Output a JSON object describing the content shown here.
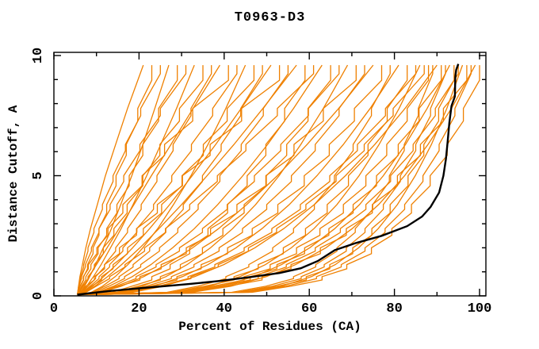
{
  "chart_data": {
    "type": "line",
    "title": "T0963-D3",
    "xlabel": "Percent of Residues (CA)",
    "ylabel": "Distance Cutoff, A",
    "xlim": [
      0,
      101.5
    ],
    "ylim": [
      0,
      10.15
    ],
    "x_major_ticks": [
      0,
      20,
      40,
      60,
      80,
      100
    ],
    "x_minor_ticks": [
      10,
      30,
      50,
      70,
      90
    ],
    "y_major_ticks": [
      0,
      5,
      10
    ],
    "y_minor_ticks": [
      1,
      2,
      3,
      4,
      6,
      7,
      8,
      9
    ],
    "grid": false,
    "legend": null,
    "colors": {
      "models": "#ef8000",
      "reference": "#000000",
      "axis": "#000000",
      "background": "#ffffff"
    },
    "origin_point": [
      5.5,
      0.05
    ],
    "cutoff_checkpoints": [
      0.15,
      0.4,
      0.8,
      1.3,
      2.0,
      2.8,
      3.8,
      5.0,
      6.3,
      7.8,
      9.6
    ],
    "model_curves_x": [
      [
        5.6,
        5.8,
        6.1,
        6.7,
        7.5,
        8.6,
        10.2,
        12.1,
        14.5,
        17.3,
        21
      ],
      [
        5.8,
        6.2,
        7.0,
        7.9,
        9.2,
        10.6,
        12.4,
        14.6,
        17.0,
        19.7,
        23
      ],
      [
        5.6,
        5.8,
        6.3,
        7.0,
        8.0,
        9.4,
        11.4,
        13.9,
        16.8,
        20.4,
        25
      ],
      [
        6.3,
        7.2,
        8.4,
        9.8,
        11.6,
        13.5,
        15.7,
        18.3,
        20.9,
        23.7,
        27
      ],
      [
        5.9,
        6.5,
        7.5,
        8.7,
        10.4,
        12.4,
        14.8,
        17.7,
        20.9,
        24.6,
        29
      ],
      [
        5.6,
        5.9,
        6.5,
        7.4,
        8.8,
        10.6,
        13.2,
        16.4,
        20.2,
        25.0,
        31
      ],
      [
        6.5,
        7.7,
        9.3,
        11.1,
        13.3,
        15.8,
        18.6,
        21.8,
        25.1,
        28.8,
        33
      ],
      [
        6.0,
        6.7,
        8.0,
        9.5,
        11.6,
        14.1,
        17.2,
        20.9,
        24.9,
        29.5,
        35
      ],
      [
        6.6,
        8.0,
        9.8,
        11.9,
        14.5,
        17.3,
        20.5,
        24.2,
        28.0,
        32.2,
        37
      ],
      [
        6.0,
        6.9,
        8.3,
        10.0,
        12.5,
        15.3,
        18.8,
        22.9,
        27.5,
        32.7,
        39
      ],
      [
        5.7,
        6.1,
        6.9,
        8.1,
        10.1,
        12.7,
        16.2,
        20.7,
        26.0,
        32.6,
        41
      ],
      [
        6.8,
        8.5,
        10.6,
        13.1,
        16.2,
        19.5,
        23.4,
        27.7,
        32.3,
        37.3,
        43
      ],
      [
        8.8,
        11.4,
        14.4,
        17.4,
        20.9,
        24.4,
        28.1,
        32.2,
        36.2,
        40.4,
        45
      ],
      [
        7.0,
        8.8,
        11.2,
        13.9,
        17.3,
        21.0,
        25.3,
        30.1,
        35.1,
        40.7,
        47
      ],
      [
        9.1,
        12.0,
        15.3,
        18.6,
        22.5,
        26.3,
        30.4,
        34.9,
        39.3,
        43.9,
        49
      ],
      [
        7.1,
        9.1,
        11.7,
        14.7,
        18.5,
        22.5,
        27.2,
        32.5,
        38.0,
        44.0,
        51
      ],
      [
        6.2,
        7.5,
        9.5,
        11.9,
        15.4,
        19.4,
        24.3,
        30.2,
        36.7,
        44.1,
        53
      ],
      [
        9.6,
        12.9,
        16.6,
        20.4,
        24.8,
        29.1,
        33.9,
        39.0,
        44.0,
        49.2,
        55
      ],
      [
        7.3,
        9.6,
        12.6,
        15.9,
        20.2,
        24.7,
        30.0,
        36.0,
        42.3,
        49.1,
        57
      ],
      [
        13.7,
        18.3,
        23.0,
        27.3,
        31.9,
        36.2,
        40.8,
        45.4,
        49.8,
        54.2,
        59
      ],
      [
        7.5,
        9.9,
        13.1,
        16.7,
        21.3,
        26.2,
        31.9,
        38.4,
        45.1,
        52.5,
        61
      ],
      [
        10.2,
        14.0,
        18.4,
        22.8,
        27.9,
        33.0,
        38.5,
        44.4,
        50.2,
        56.3,
        63
      ],
      [
        14.7,
        19.7,
        25.0,
        29.7,
        34.9,
        39.7,
        44.7,
        49.9,
        54.7,
        59.7,
        65
      ],
      [
        10.6,
        14.6,
        19.3,
        24.0,
        29.5,
        34.9,
        40.7,
        47.1,
        53.3,
        59.8,
        67
      ],
      [
        15.3,
        20.7,
        26.3,
        31.3,
        36.8,
        42.0,
        47.4,
        52.9,
        58.0,
        63.3,
        69
      ],
      [
        10.9,
        15.2,
        20.2,
        25.2,
        31.1,
        36.8,
        43.0,
        49.8,
        56.4,
        63.3,
        71
      ],
      [
        15.9,
        21.7,
        27.6,
        32.9,
        38.8,
        44.3,
        50.0,
        55.8,
        61.4,
        67.0,
        73
      ],
      [
        11.2,
        15.8,
        21.1,
        26.4,
        32.6,
        38.7,
        45.3,
        52.5,
        59.5,
        66.9,
        75
      ],
      [
        16.5,
        22.6,
        28.9,
        34.6,
        40.8,
        46.6,
        52.6,
        58.8,
        64.7,
        70.6,
        77
      ],
      [
        26.6,
        33.8,
        40.4,
        45.8,
        51.4,
        56.3,
        61.2,
        65.9,
        70.3,
        74.6,
        79
      ],
      [
        17.1,
        23.6,
        30.2,
        36.2,
        42.8,
        48.9,
        55.3,
        61.8,
        68.0,
        74.3,
        81
      ],
      [
        27.7,
        35.4,
        42.3,
        48.0,
        53.9,
        59.1,
        64.2,
        69.2,
        73.8,
        78.3,
        83
      ],
      [
        17.7,
        24.5,
        31.5,
        37.8,
        44.7,
        51.2,
        57.9,
        64.8,
        71.3,
        77.9,
        85
      ],
      [
        28.6,
        36.5,
        43.7,
        49.7,
        55.8,
        61.1,
        66.5,
        71.7,
        76.4,
        81.1,
        86
      ],
      [
        29.2,
        37.3,
        44.7,
        50.8,
        57.0,
        62.5,
        68.0,
        73.3,
        78.2,
        83.0,
        88
      ],
      [
        41.8,
        49.8,
        56.3,
        61.5,
        66.5,
        70.8,
        74.9,
        78.8,
        82.3,
        85.6,
        89
      ],
      [
        18.5,
        25.7,
        33.1,
        39.9,
        47.2,
        54.0,
        61.2,
        68.5,
        75.4,
        82.5,
        90
      ],
      [
        30.0,
        38.5,
        46.1,
        52.4,
        58.9,
        64.6,
        70.3,
        75.8,
        80.9,
        85.8,
        91
      ],
      [
        43.1,
        51.3,
        58.1,
        63.5,
        68.7,
        73.1,
        77.4,
        81.4,
        85.0,
        88.5,
        92
      ],
      [
        30.6,
        39.2,
        47.0,
        53.5,
        60.1,
        66.0,
        71.8,
        77.4,
        82.6,
        87.7,
        93
      ],
      [
        44.0,
        52.4,
        59.3,
        64.8,
        70.2,
        74.7,
        79.0,
        83.2,
        86.9,
        90.4,
        94
      ],
      [
        31.2,
        40.0,
        48.0,
        54.6,
        61.4,
        67.3,
        73.3,
        79.1,
        84.4,
        89.6,
        95
      ],
      [
        44.9,
        53.5,
        60.5,
        66.1,
        71.6,
        76.2,
        80.7,
        84.9,
        88.7,
        92.3,
        96
      ],
      [
        31.8,
        40.8,
        48.9,
        55.7,
        62.6,
        68.7,
        74.8,
        80.7,
        86.1,
        91.5,
        97
      ],
      [
        45.7,
        54.5,
        61.7,
        67.5,
        73.1,
        77.8,
        82.4,
        86.7,
        90.5,
        94.2,
        98
      ],
      [
        32.3,
        41.6,
        49.9,
        56.8,
        63.9,
        70.1,
        76.3,
        82.4,
        87.9,
        93.4,
        99
      ],
      [
        46.6,
        55.6,
        63.0,
        68.8,
        74.6,
        79.4,
        84.0,
        88.4,
        92.4,
        96.2,
        100
      ],
      [
        18.0,
        25.0,
        32.2,
        38.6,
        45.7,
        52.3,
        59.2,
        66.3,
        72.9,
        79.7,
        87
      ]
    ],
    "reference_curve": [
      [
        5.5,
        0.05
      ],
      [
        13,
        0.2
      ],
      [
        21,
        0.33
      ],
      [
        27,
        0.42
      ],
      [
        32,
        0.5
      ],
      [
        39,
        0.62
      ],
      [
        46,
        0.78
      ],
      [
        53,
        0.95
      ],
      [
        58,
        1.15
      ],
      [
        62,
        1.45
      ],
      [
        66,
        1.9
      ],
      [
        71,
        2.2
      ],
      [
        77,
        2.5
      ],
      [
        83,
        2.9
      ],
      [
        86.5,
        3.3
      ],
      [
        88.5,
        3.7
      ],
      [
        90.5,
        4.3
      ],
      [
        91.5,
        5.0
      ],
      [
        92.1,
        5.7
      ],
      [
        92.5,
        6.4
      ],
      [
        92.9,
        7.2
      ],
      [
        93.4,
        7.9
      ],
      [
        94.2,
        8.3
      ],
      [
        94.3,
        9.1
      ],
      [
        94.5,
        9.4
      ],
      [
        95,
        9.65
      ]
    ]
  }
}
